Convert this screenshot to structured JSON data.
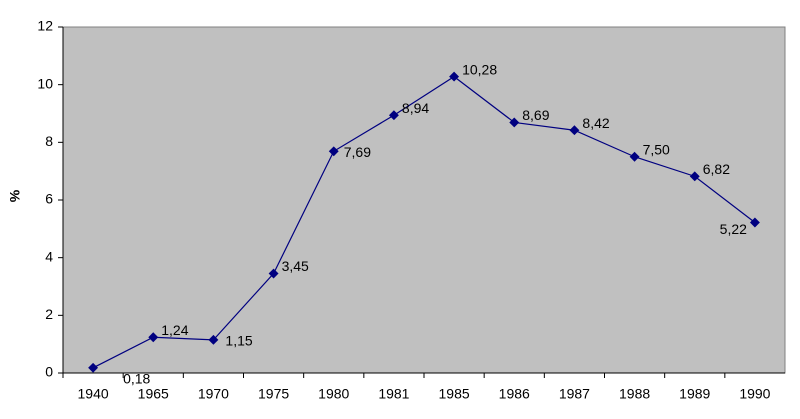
{
  "chart_data": {
    "type": "line",
    "y_label": "%",
    "categories": [
      "1940",
      "1965",
      "1970",
      "1975",
      "1980",
      "1981",
      "1985",
      "1986",
      "1987",
      "1988",
      "1989",
      "1990"
    ],
    "values": [
      0.18,
      1.24,
      1.15,
      3.45,
      7.69,
      8.94,
      10.28,
      8.69,
      8.42,
      7.5,
      6.82,
      5.22
    ],
    "value_labels": [
      "0,18",
      "1,24",
      "1,15",
      "3,45",
      "7,69",
      "8,94",
      "10,28",
      "8,69",
      "8,42",
      "7,50",
      "6,82",
      "5,22"
    ],
    "color": "#000080",
    "ylim": [
      0,
      12
    ],
    "yticks": [
      0,
      2,
      4,
      6,
      8,
      10,
      12
    ],
    "grid": false
  }
}
